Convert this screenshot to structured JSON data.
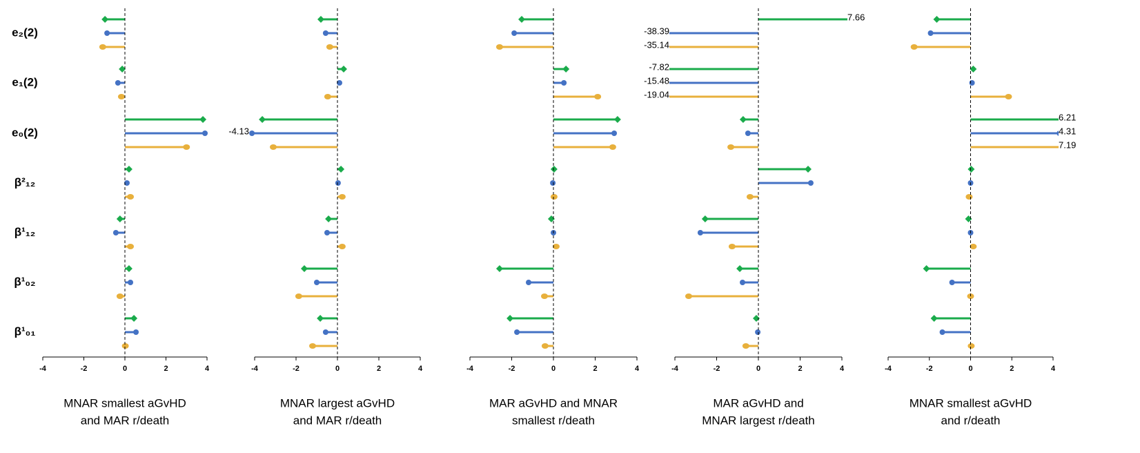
{
  "chart_data": [
    {
      "type": "lollipop",
      "title": [
        "MNAR smallest aGvHD",
        "and MAR r/death"
      ],
      "categories": [
        "e₂(2)",
        "e₁(2)",
        "e₀(2)",
        "β²₁₂",
        "β¹₁₂",
        "β¹₀₂",
        "β¹₀₁"
      ],
      "xlim": [
        -4,
        4
      ],
      "xticks": [
        -4,
        -2,
        0,
        2,
        4
      ],
      "series": [
        {
          "color": "#1aab4b",
          "marker": "diamond",
          "values": [
            -0.97,
            -0.13,
            3.8,
            0.2,
            -0.24,
            0.2,
            0.44
          ]
        },
        {
          "color": "#4472c4",
          "marker": "circle",
          "values": [
            -0.87,
            -0.34,
            3.9,
            0.1,
            -0.44,
            0.27,
            0.54
          ]
        },
        {
          "color": "#e8b03c",
          "marker": "circle",
          "values": [
            -1.08,
            -0.17,
            3.0,
            0.27,
            0.27,
            -0.24,
            0.02
          ]
        }
      ]
    },
    {
      "type": "lollipop",
      "title": [
        "MNAR largest aGvHD",
        "and MAR r/death"
      ],
      "xlim": [
        -4,
        4
      ],
      "xticks": [
        -4,
        -2,
        0,
        2,
        4
      ],
      "series": [
        {
          "color": "#1aab4b",
          "marker": "diamond",
          "values": [
            -0.8,
            0.3,
            -3.63,
            0.17,
            -0.43,
            -1.6,
            -0.83
          ]
        },
        {
          "color": "#4472c4",
          "marker": "circle",
          "values": [
            -0.57,
            0.1,
            -4.13,
            0.03,
            -0.5,
            -1.0,
            -0.57
          ]
        },
        {
          "color": "#e8b03c",
          "marker": "circle",
          "values": [
            -0.37,
            -0.47,
            -3.1,
            0.23,
            0.23,
            -1.87,
            -1.2
          ]
        }
      ]
    },
    {
      "type": "lollipop",
      "title": [
        "MAR aGvHD and MNAR",
        "smallest r/death"
      ],
      "xlim": [
        -4,
        4
      ],
      "xticks": [
        -4,
        -2,
        0,
        2,
        4
      ],
      "series": [
        {
          "color": "#1aab4b",
          "marker": "diamond",
          "values": [
            -1.52,
            0.6,
            3.07,
            0.03,
            -0.1,
            -2.58,
            -2.08
          ]
        },
        {
          "color": "#4472c4",
          "marker": "circle",
          "values": [
            -1.88,
            0.5,
            2.91,
            -0.03,
            0,
            -1.19,
            -1.75
          ]
        },
        {
          "color": "#e8b03c",
          "marker": "circle",
          "values": [
            -2.58,
            2.12,
            2.84,
            0.03,
            0.13,
            -0.43,
            -0.4
          ]
        }
      ]
    },
    {
      "type": "lollipop",
      "title": [
        "MAR aGvHD and",
        "MNAR largest r/death"
      ],
      "xlim": [
        -4,
        4
      ],
      "xticks": [
        -4,
        -2,
        0,
        2,
        4
      ],
      "series": [
        {
          "color": "#1aab4b",
          "marker": "diamond",
          "values": [
            7.66,
            -7.82,
            -0.73,
            2.38,
            -2.55,
            -0.89,
            -0.1
          ]
        },
        {
          "color": "#4472c4",
          "marker": "circle",
          "values": [
            -38.39,
            -15.48,
            -0.5,
            2.51,
            -2.78,
            -0.76,
            -0.03
          ]
        },
        {
          "color": "#e8b03c",
          "marker": "circle",
          "values": [
            -35.14,
            -19.04,
            -1.32,
            -0.4,
            -1.26,
            -3.34,
            -0.6
          ]
        }
      ]
    },
    {
      "type": "lollipop",
      "title": [
        "MNAR smallest aGvHD",
        "and r/death"
      ],
      "xlim": [
        -4,
        4
      ],
      "xticks": [
        -4,
        -2,
        0,
        2,
        4
      ],
      "series": [
        {
          "color": "#1aab4b",
          "marker": "diamond",
          "values": [
            -1.64,
            0.13,
            6.21,
            0.03,
            -0.1,
            -2.14,
            -1.77
          ]
        },
        {
          "color": "#4472c4",
          "marker": "circle",
          "values": [
            -1.94,
            0.07,
            4.31,
            0,
            0,
            -0.9,
            -1.37
          ]
        },
        {
          "color": "#e8b03c",
          "marker": "circle",
          "values": [
            -2.74,
            1.84,
            7.19,
            -0.07,
            0.13,
            0,
            0.03
          ]
        }
      ]
    }
  ]
}
